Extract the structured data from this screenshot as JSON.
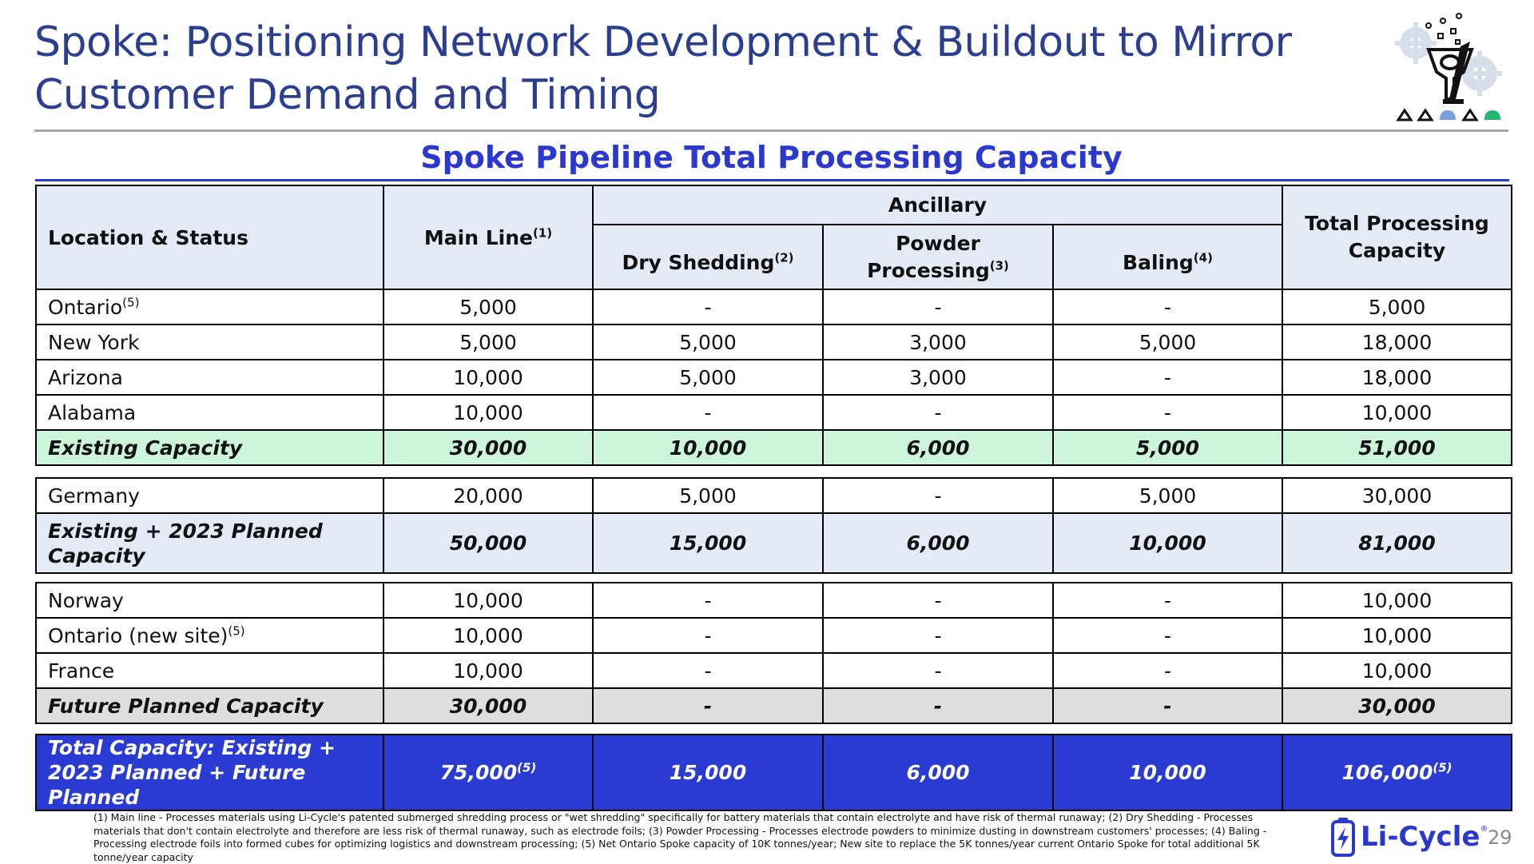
{
  "title": "Spoke: Positioning Network Development & Buildout to Mirror Customer Demand and Timing",
  "subtitle": "Spoke Pipeline Total Processing Capacity",
  "header": {
    "location": "Location & Status",
    "main_line": "Main Line",
    "main_line_sup": "(1)",
    "ancillary": "Ancillary",
    "dry_shedding": "Dry Shedding",
    "dry_shedding_sup": "(2)",
    "powder": "Powder Processing",
    "powder_sup": "(3)",
    "baling": "Baling",
    "baling_sup": "(4)",
    "total": "Total Processing Capacity"
  },
  "group1": {
    "rows": [
      {
        "location": "Ontario",
        "sup": "(5)",
        "main": "5,000",
        "dry": "-",
        "powder": "-",
        "baling": "-",
        "total": "5,000"
      },
      {
        "location": "New York",
        "sup": "",
        "main": "5,000",
        "dry": "5,000",
        "powder": "3,000",
        "baling": "5,000",
        "total": "18,000"
      },
      {
        "location": "Arizona",
        "sup": "",
        "main": "10,000",
        "dry": "5,000",
        "powder": "3,000",
        "baling": "-",
        "total": "18,000"
      },
      {
        "location": "Alabama",
        "sup": "",
        "main": "10,000",
        "dry": "-",
        "powder": "-",
        "baling": "-",
        "total": "10,000"
      }
    ],
    "subtotal": {
      "location": "Existing Capacity",
      "main": "30,000",
      "dry": "10,000",
      "powder": "6,000",
      "baling": "5,000",
      "total": "51,000"
    }
  },
  "group2": {
    "rows": [
      {
        "location": "Germany",
        "sup": "",
        "main": "20,000",
        "dry": "5,000",
        "powder": "-",
        "baling": "5,000",
        "total": "30,000"
      }
    ],
    "subtotal": {
      "location": "Existing + 2023 Planned Capacity",
      "main": "50,000",
      "dry": "15,000",
      "powder": "6,000",
      "baling": "10,000",
      "total": "81,000"
    }
  },
  "group3": {
    "rows": [
      {
        "location": "Norway",
        "sup": "",
        "main": "10,000",
        "dry": "-",
        "powder": "-",
        "baling": "-",
        "total": "10,000"
      },
      {
        "location": "Ontario (new site)",
        "sup": "(5)",
        "main": "10,000",
        "dry": "-",
        "powder": "-",
        "baling": "-",
        "total": "10,000"
      },
      {
        "location": "France",
        "sup": "",
        "main": "10,000",
        "dry": "-",
        "powder": "-",
        "baling": "-",
        "total": "10,000"
      }
    ],
    "subtotal": {
      "location": "Future Planned Capacity",
      "main": "30,000",
      "dry": "-",
      "powder": "-",
      "baling": "-",
      "total": "30,000"
    }
  },
  "grand_total": {
    "location": "Total Capacity: Existing + 2023 Planned + Future Planned",
    "main": "75,000",
    "main_sup": "(5)",
    "dry": "15,000",
    "powder": "6,000",
    "baling": "10,000",
    "total": "106,000",
    "total_sup": "(5)"
  },
  "footnote": "(1) Main line - Processes materials using Li-Cycle's patented submerged shredding process or \"wet shredding\" specifically for battery materials that contain electrolyte and have risk of thermal runaway; (2) Dry Shedding - Processes materials that don't contain electrolyte and therefore are less risk of thermal runaway, such as electrode foils; (3) Powder Processing - Processes electrode powders to minimize dusting in downstream customers' processes; (4) Baling - Processing electrode foils into formed cubes for optimizing logistics and downstream processing; (5) Net Ontario Spoke capacity of 10K tonnes/year; New site to replace the 5K tonnes/year current Ontario Spoke for total additional 5K tonne/year capacity",
  "brand": {
    "name": "Li-Cycle",
    "reg": "®"
  },
  "page_number": "29",
  "colors": {
    "title": "#2c3e8f",
    "accent_blue": "#2b38cf",
    "existing_green": "#cdf5dc",
    "planned_blue": "#e4eaf6",
    "future_grey": "#dedede",
    "total_blue": "#2a3bd4"
  },
  "icons": {
    "logo_graphic": "gears-funnel-icon",
    "brand_battery": "battery-bolt-icon"
  }
}
